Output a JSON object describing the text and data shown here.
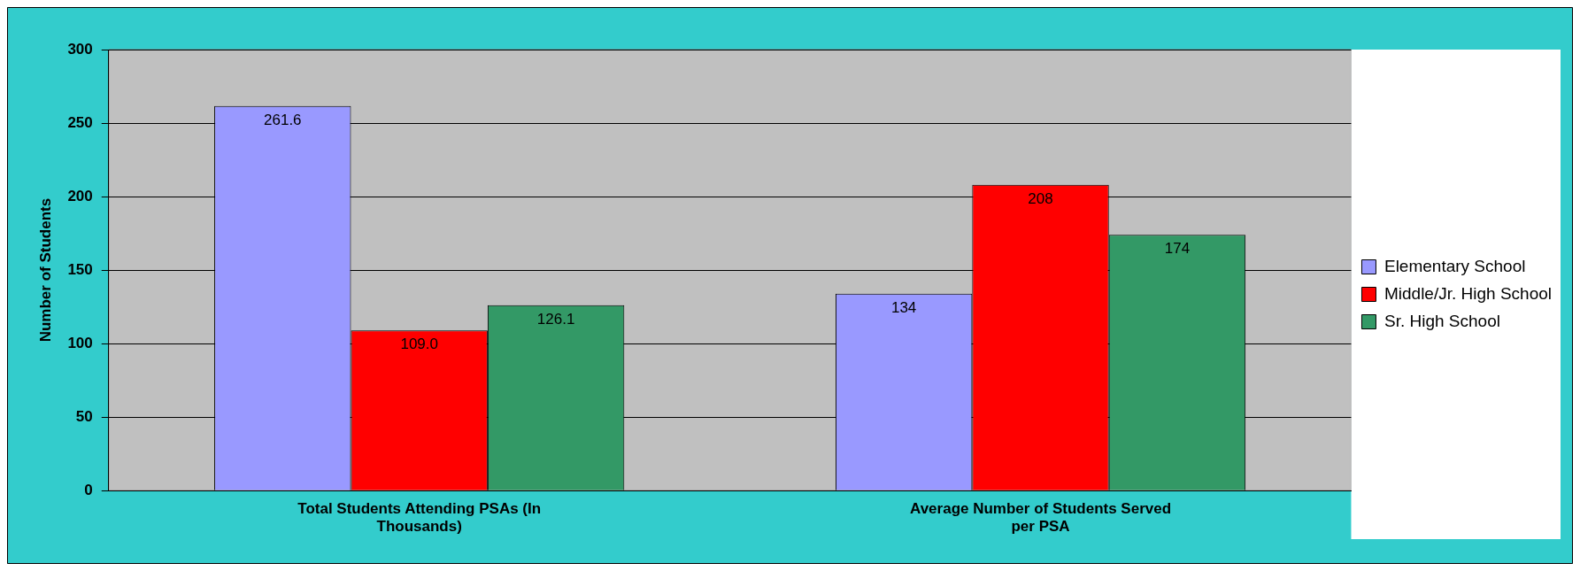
{
  "chart_data": {
    "type": "bar",
    "ylabel": "Number of Students",
    "categories": [
      "Total Students Attending PSAs (In Thousands)",
      "Average Number of Students Served per PSA"
    ],
    "series": [
      {
        "name": "Elementary School",
        "color": "#9999ff",
        "values": [
          261.6,
          134
        ],
        "value_labels": [
          "261.6",
          "134"
        ]
      },
      {
        "name": "Middle/Jr. High School",
        "color": "#ff0000",
        "values": [
          109.0,
          208
        ],
        "value_labels": [
          "109.0",
          "208"
        ]
      },
      {
        "name": "Sr. High School",
        "color": "#339966",
        "values": [
          126.1,
          174
        ],
        "value_labels": [
          "126.1",
          "174"
        ]
      }
    ],
    "ylim": [
      0,
      300
    ],
    "yticks": [
      0,
      50,
      100,
      150,
      200,
      250,
      300
    ],
    "grid": "y",
    "legend": "right"
  }
}
